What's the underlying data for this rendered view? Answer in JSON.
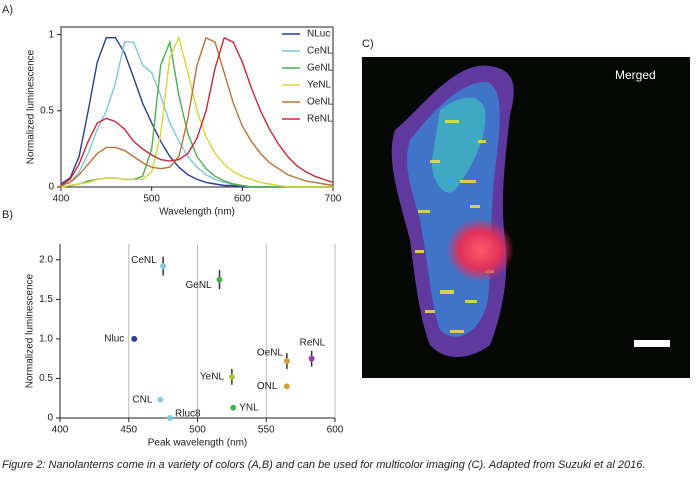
{
  "chart_data": [
    {
      "type": "line",
      "label": "A)",
      "xlabel": "Wavelength (nm)",
      "ylabel": "Normalized luminescence",
      "x": [
        400,
        410,
        420,
        430,
        440,
        450,
        460,
        470,
        480,
        490,
        500,
        510,
        520,
        530,
        540,
        550,
        560,
        570,
        580,
        590,
        600,
        610,
        620,
        630,
        640,
        650,
        660,
        670,
        680,
        690,
        700
      ],
      "xlim": [
        400,
        700
      ],
      "xticks": [
        400,
        500,
        600,
        700
      ],
      "ylim": [
        0,
        1.05
      ],
      "yticks": [
        0,
        0.5,
        1
      ],
      "legend": "upper right",
      "series": [
        {
          "name": "NLuc",
          "color": "#2b3d8f",
          "values": [
            0.02,
            0.06,
            0.2,
            0.5,
            0.82,
            0.98,
            0.98,
            0.88,
            0.72,
            0.55,
            0.42,
            0.3,
            0.2,
            0.13,
            0.08,
            0.05,
            0.03,
            0.02,
            0.01,
            0.01,
            0,
            0,
            0,
            0,
            0,
            0,
            0,
            0,
            0,
            0,
            0
          ]
        },
        {
          "name": "CeNL",
          "color": "#7ec8d6",
          "values": [
            0.01,
            0.03,
            0.1,
            0.22,
            0.38,
            0.5,
            0.68,
            0.95,
            0.95,
            0.8,
            0.75,
            0.6,
            0.42,
            0.3,
            0.2,
            0.13,
            0.08,
            0.05,
            0.03,
            0.02,
            0.01,
            0,
            0,
            0,
            0,
            0,
            0,
            0,
            0,
            0,
            0
          ]
        },
        {
          "name": "GeNL",
          "color": "#4caf50",
          "values": [
            0,
            0.01,
            0.02,
            0.04,
            0.05,
            0.06,
            0.06,
            0.05,
            0.05,
            0.07,
            0.25,
            0.8,
            0.95,
            0.6,
            0.35,
            0.2,
            0.12,
            0.07,
            0.04,
            0.02,
            0.01,
            0,
            0,
            0,
            0,
            0,
            0,
            0,
            0,
            0,
            0
          ]
        },
        {
          "name": "YeNL",
          "color": "#d6d63a",
          "values": [
            0,
            0.01,
            0.02,
            0.03,
            0.05,
            0.06,
            0.06,
            0.05,
            0.05,
            0.05,
            0.1,
            0.35,
            0.85,
            0.98,
            0.75,
            0.5,
            0.33,
            0.22,
            0.15,
            0.1,
            0.07,
            0.05,
            0.03,
            0.02,
            0.01,
            0,
            0,
            0,
            0,
            0,
            0
          ]
        },
        {
          "name": "OeNL",
          "color": "#b8733a",
          "values": [
            0.01,
            0.03,
            0.08,
            0.15,
            0.22,
            0.26,
            0.26,
            0.24,
            0.2,
            0.16,
            0.13,
            0.12,
            0.13,
            0.2,
            0.45,
            0.8,
            0.98,
            0.95,
            0.75,
            0.55,
            0.4,
            0.3,
            0.22,
            0.16,
            0.12,
            0.08,
            0.06,
            0.04,
            0.03,
            0.02,
            0.01
          ]
        },
        {
          "name": "ReNL",
          "color": "#c8283c",
          "values": [
            0.01,
            0.05,
            0.15,
            0.3,
            0.42,
            0.45,
            0.43,
            0.38,
            0.3,
            0.25,
            0.21,
            0.18,
            0.17,
            0.18,
            0.22,
            0.32,
            0.5,
            0.78,
            0.98,
            0.95,
            0.82,
            0.65,
            0.5,
            0.38,
            0.28,
            0.2,
            0.14,
            0.1,
            0.07,
            0.05,
            0.03
          ]
        }
      ]
    },
    {
      "type": "scatter",
      "label": "B)",
      "xlabel": "Peak wavelength (nm)",
      "ylabel": "Normalized luminescence",
      "categories": [
        "CeNL",
        "GeNL",
        "Nluc",
        "ReNL",
        "OeNL",
        "YeNL",
        "ONL",
        "CNL",
        "Rluc8",
        "YNL"
      ],
      "x": [
        475,
        516,
        454,
        583,
        565,
        525,
        565,
        473,
        480,
        526
      ],
      "values": [
        1.92,
        1.75,
        1.0,
        0.75,
        0.72,
        0.52,
        0.4,
        0.23,
        0.0,
        0.13
      ],
      "errors": [
        0.12,
        0.12,
        null,
        0.1,
        0.1,
        0.1,
        null,
        null,
        null,
        null
      ],
      "colors": [
        "#7ec8d6",
        "#4caf50",
        "#2b3d8f",
        "#8e44ad",
        "#d89a3a",
        "#b5c234",
        "#d8a03a",
        "#8fd0dc",
        "#7ec8d6",
        "#4caf50"
      ],
      "xlim": [
        400,
        600
      ],
      "xticks": [
        400,
        450,
        500,
        550,
        600
      ],
      "ylim": [
        0,
        2.2
      ],
      "yticks": [
        0,
        0.5,
        {
          "value": 1,
          "label": "1.0"
        },
        1.5,
        {
          "value": 2,
          "label": "2.0"
        }
      ],
      "grid": true
    }
  ],
  "image": {
    "label": "C)",
    "text": "Merged"
  },
  "caption": "Figure 2: Nanolanterns come in a variety of colors (A,B) and can be used for multicolor imaging (C). Adapted from Suzuki et al 2016."
}
